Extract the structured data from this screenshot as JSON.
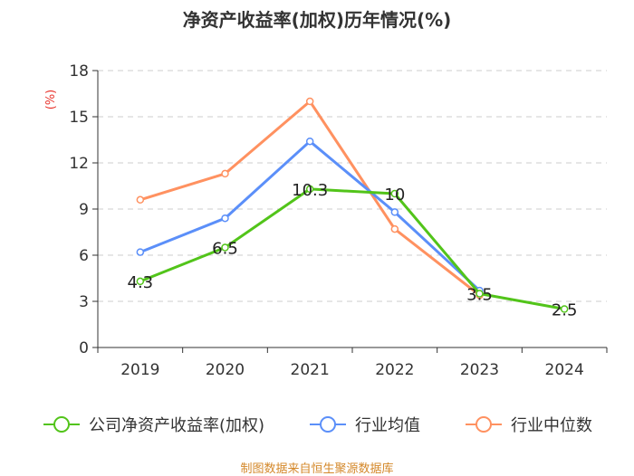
{
  "chart_data": {
    "type": "line",
    "title": "净资产收益率(加权)历年情况(%)",
    "ylabel": "(%)",
    "xlabel": "",
    "ylim": [
      0,
      18
    ],
    "yticks": [
      0,
      3,
      6,
      9,
      12,
      15,
      18
    ],
    "categories": [
      "2019",
      "2020",
      "2021",
      "2022",
      "2023",
      "2024"
    ],
    "grid": true,
    "legend_position": "bottom",
    "series": [
      {
        "name": "公司净资产收益率(加权)",
        "color": "#52c41a",
        "values": [
          4.3,
          6.5,
          10.3,
          10,
          3.5,
          2.5
        ],
        "labels": [
          "4.3",
          "6.5",
          "10.3",
          "10",
          "3.5",
          "2.5"
        ]
      },
      {
        "name": "行业均值",
        "color": "#5b8ff9",
        "values": [
          6.2,
          8.4,
          13.4,
          8.8,
          3.7,
          null
        ]
      },
      {
        "name": "行业中位数",
        "color": "#ff9160",
        "values": [
          9.6,
          11.3,
          16.0,
          7.7,
          3.4,
          null
        ]
      }
    ]
  },
  "source_note": "制图数据来自恒生聚源数据库"
}
